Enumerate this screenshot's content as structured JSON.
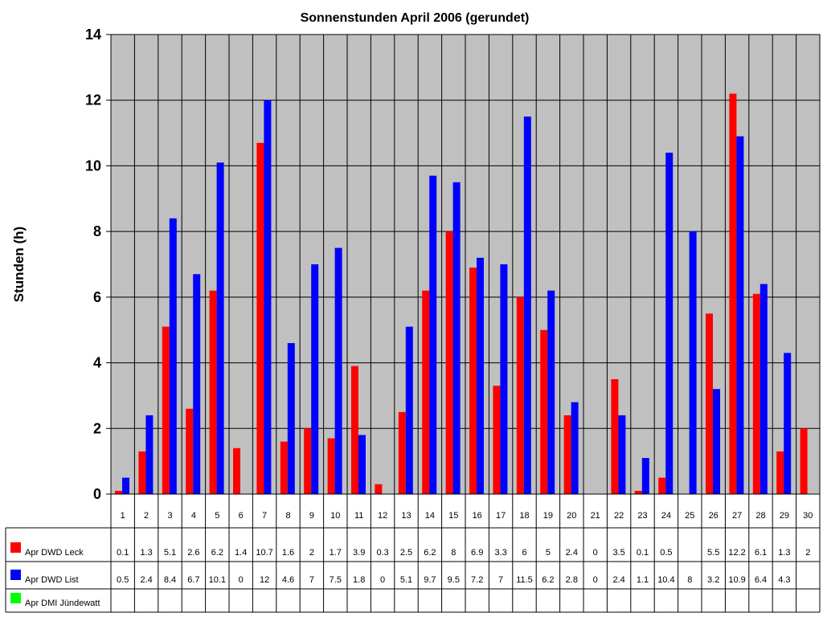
{
  "chart_data": {
    "type": "bar",
    "title": "Sonnenstunden April 2006 (gerundet)",
    "xlabel": "",
    "ylabel": "Stunden (h)",
    "ylim": [
      0,
      14
    ],
    "yticks": [
      0,
      2,
      4,
      6,
      8,
      10,
      12,
      14
    ],
    "grid": true,
    "legend_placement": "bottom-left (data table)",
    "categories": [
      "1",
      "2",
      "3",
      "4",
      "5",
      "6",
      "7",
      "8",
      "9",
      "10",
      "11",
      "12",
      "13",
      "14",
      "15",
      "16",
      "17",
      "18",
      "19",
      "20",
      "21",
      "22",
      "23",
      "24",
      "25",
      "26",
      "27",
      "28",
      "29",
      "30"
    ],
    "series": [
      {
        "name": "Apr DWD Leck",
        "color": "#ff0000",
        "values": [
          0.1,
          1.3,
          5.1,
          2.6,
          6.2,
          1.4,
          10.7,
          1.6,
          2,
          1.7,
          3.9,
          0.3,
          2.5,
          6.2,
          8,
          6.9,
          3.3,
          6,
          5,
          2.4,
          0,
          3.5,
          0.1,
          0.5,
          null,
          5.5,
          12.2,
          6.1,
          1.3,
          2
        ]
      },
      {
        "name": "Apr DWD List",
        "color": "#0000ff",
        "values": [
          0.5,
          2.4,
          8.4,
          6.7,
          10.1,
          0,
          12,
          4.6,
          7,
          7.5,
          1.8,
          0,
          5.1,
          9.7,
          9.5,
          7.2,
          7,
          11.5,
          6.2,
          2.8,
          0,
          2.4,
          1.1,
          10.4,
          8,
          3.2,
          10.9,
          6.4,
          4.3,
          null
        ]
      },
      {
        "name": "Apr DMI Jündewatt",
        "color": "#00ff00",
        "values": [
          null,
          null,
          null,
          null,
          null,
          null,
          null,
          null,
          null,
          null,
          null,
          null,
          null,
          null,
          null,
          null,
          null,
          null,
          null,
          null,
          null,
          null,
          null,
          null,
          null,
          null,
          null,
          null,
          null,
          null
        ]
      }
    ]
  },
  "colors": {
    "plot_background": "#c0c0c0",
    "gridline": "#000000"
  }
}
